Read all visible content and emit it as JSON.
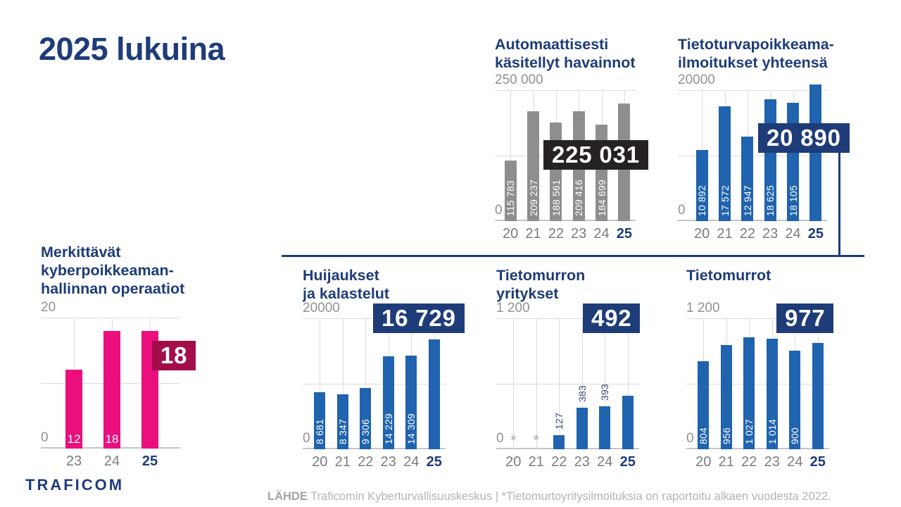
{
  "page": {
    "title": "2025 lukuina",
    "footer": {
      "logo": "TRAFICOM",
      "source_label": "LÄHDE",
      "source_text": " Traficomin Kyberturvallisuuskeskus | *Tietomurtoyritysilmoituksia on raportoitu alkaen vuodesta 2022."
    }
  },
  "colors": {
    "navy": "#1e3c78",
    "blue_bar": "#2063ae",
    "gray_bar": "#8e8e8e",
    "dark_callout": "#262223",
    "pink_bar": "#ea0f7d",
    "crimson_callout": "#a30d49"
  },
  "chart_data": [
    {
      "id": "automaattisesti-kasitellyt-havainnot",
      "type": "bar",
      "title_lines": [
        "Automaattisesti",
        "käsitellyt havainnot"
      ],
      "ylim": [
        0,
        250000
      ],
      "ymax_label": "250 000",
      "ymin_label": "0",
      "grid": true,
      "categories": [
        "20",
        "21",
        "22",
        "23",
        "24",
        "25"
      ],
      "values": [
        115783,
        209237,
        188561,
        209416,
        184699,
        225031
      ],
      "bar_labels": [
        "115 783",
        "209 237",
        "188 561",
        "209 416",
        "184 699",
        ""
      ],
      "bar_label_position": "inside",
      "bar_color": "gray_bar",
      "highlight_category": "25",
      "callout": {
        "text": "225 031",
        "value": 225031,
        "color": "dark_callout"
      }
    },
    {
      "id": "tietoturvapoikkeama-ilmoitukset-yhteensa",
      "type": "bar",
      "title_lines": [
        "Tietoturvapoikkeama-",
        "ilmoitukset yhteensä"
      ],
      "ylim": [
        0,
        20000
      ],
      "ymax_label": "20000",
      "ymin_label": "0",
      "grid": true,
      "categories": [
        "20",
        "21",
        "22",
        "23",
        "24",
        "25"
      ],
      "values": [
        10892,
        17572,
        12947,
        18625,
        18105,
        20890
      ],
      "bar_labels": [
        "10 892",
        "17 572",
        "12 947",
        "18 625",
        "18 105",
        ""
      ],
      "bar_label_position": "inside",
      "bar_color": "blue_bar",
      "highlight_category": "25",
      "callout": {
        "text": "20 890",
        "value": 20890,
        "color": "navy"
      }
    },
    {
      "id": "merkittavat-kyberpoikkeamanhallinnan-operaatiot",
      "type": "bar",
      "title_lines": [
        "Merkittävät",
        "kyberpoikkeaman-",
        "hallinnan operaatiot"
      ],
      "ylim": [
        0,
        20
      ],
      "ymax_label": "20",
      "ymin_label": "0",
      "grid": true,
      "categories": [
        "23",
        "24",
        "25"
      ],
      "values": [
        12,
        18,
        18
      ],
      "bar_labels": [
        "12",
        "18",
        ""
      ],
      "bar_label_position": "inside-flat",
      "bar_color": "pink_bar",
      "highlight_category": "25",
      "callout": {
        "text": "18",
        "value": 18,
        "color": "crimson_callout"
      }
    },
    {
      "id": "huijaukset-ja-kalastelut",
      "type": "bar",
      "title_lines": [
        "Huijaukset",
        "ja kalastelut"
      ],
      "ylim": [
        0,
        20000
      ],
      "ymax_label": "20000",
      "ymin_label": "0",
      "grid": true,
      "categories": [
        "20",
        "21",
        "22",
        "23",
        "24",
        "25"
      ],
      "values": [
        8681,
        8347,
        9306,
        14229,
        14309,
        16729
      ],
      "bar_labels": [
        "8 681",
        "8 347",
        "9 306",
        "14 229",
        "14 309",
        ""
      ],
      "bar_label_position": "inside",
      "bar_color": "blue_bar",
      "highlight_category": "25",
      "callout": {
        "text": "16 729",
        "value": 16729,
        "color": "navy"
      }
    },
    {
      "id": "tietomurron-yritykset",
      "type": "bar",
      "title_lines": [
        "Tietomurron",
        "yritykset"
      ],
      "ylim": [
        0,
        1200
      ],
      "ymax_label": "1 200",
      "ymin_label": "0",
      "grid": true,
      "categories": [
        "20",
        "21",
        "22",
        "23",
        "24",
        "25"
      ],
      "values": [
        null,
        null,
        127,
        383,
        393,
        492
      ],
      "bar_labels": [
        "*",
        "*",
        "127",
        "383",
        "393",
        ""
      ],
      "bar_label_position": "above",
      "missing_marker": "*",
      "bar_color": "blue_bar",
      "highlight_category": "25",
      "callout": {
        "text": "492",
        "value": 492,
        "color": "navy"
      }
    },
    {
      "id": "tietomurrot",
      "type": "bar",
      "title_lines": [
        "Tietomurrot"
      ],
      "ylim": [
        0,
        1200
      ],
      "ymax_label": "1 200",
      "ymin_label": "0",
      "grid": true,
      "categories": [
        "20",
        "21",
        "22",
        "23",
        "24",
        "25"
      ],
      "values": [
        804,
        956,
        1027,
        1014,
        900,
        977
      ],
      "bar_labels": [
        "804",
        "956",
        "1 027",
        "1 014",
        "900",
        ""
      ],
      "bar_label_position": "inside",
      "bar_color": "blue_bar",
      "highlight_category": "25",
      "callout": {
        "text": "977",
        "value": 977,
        "color": "navy"
      }
    }
  ]
}
